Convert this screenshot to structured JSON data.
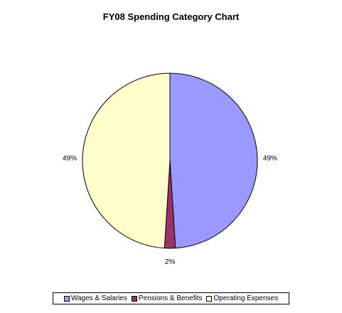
{
  "chart_data": {
    "type": "pie",
    "title": "FY08 Spending Category Chart",
    "slices": [
      {
        "name": "Wages & Salaries",
        "value": 49,
        "label": "49%",
        "color": "#9999FF"
      },
      {
        "name": "Pensions & Benefits",
        "value": 2,
        "label": "2%",
        "color": "#993366"
      },
      {
        "name": "Operating Expenses",
        "value": 49,
        "label": "49%",
        "color": "#FFFFCC"
      }
    ],
    "legend_position": "bottom"
  }
}
